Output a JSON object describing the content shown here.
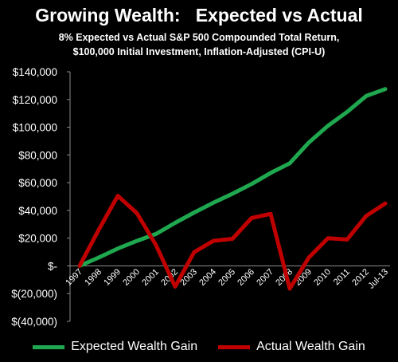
{
  "chart_data": {
    "type": "line",
    "title": "Growing Wealth:   Expected vs Actual",
    "subtitle_lines": [
      "8% Expected vs Actual S&P 500 Compounded Total Return,",
      "$100,000 Initial Investment, Inflation-Adjusted (CPI-U)"
    ],
    "categories": [
      "1997",
      "1998",
      "1999",
      "2000",
      "2001",
      "2002",
      "2003",
      "2004",
      "2005",
      "2006",
      "2007",
      "2008",
      "2009",
      "2010",
      "2011",
      "2012",
      "Jul-13"
    ],
    "series": [
      {
        "name": "Expected Wealth Gain",
        "color": "#1fa84f",
        "values": [
          0,
          6000,
          12500,
          18000,
          23000,
          31000,
          38500,
          45500,
          52000,
          59000,
          67000,
          74000,
          89000,
          101000,
          111000,
          122500,
          127500
        ]
      },
      {
        "name": "Actual Wealth Gain",
        "color": "#c00000",
        "values": [
          0,
          26000,
          50500,
          38000,
          15000,
          -15000,
          10000,
          18000,
          19500,
          34500,
          37500,
          -16500,
          6000,
          20000,
          19000,
          36000,
          45000
        ]
      }
    ],
    "y_ticks": [
      {
        "value": 140000,
        "label": "$140,000"
      },
      {
        "value": 120000,
        "label": "$120,000"
      },
      {
        "value": 100000,
        "label": "$100,000"
      },
      {
        "value": 80000,
        "label": "$80,000"
      },
      {
        "value": 60000,
        "label": "$60,000"
      },
      {
        "value": 40000,
        "label": "$40,000"
      },
      {
        "value": 20000,
        "label": "$20,000"
      },
      {
        "value": 0,
        "label": "$-"
      },
      {
        "value": -20000,
        "label": "$(20,000)"
      },
      {
        "value": -40000,
        "label": "$(40,000)"
      }
    ],
    "ylim": [
      -40000,
      140000
    ],
    "grid": false,
    "legend_position": "bottom",
    "axis_color": "#8c8c8c"
  }
}
